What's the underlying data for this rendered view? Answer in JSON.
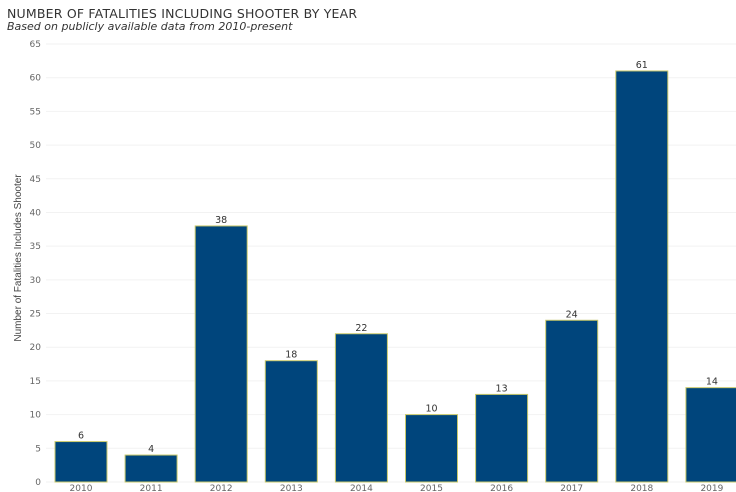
{
  "chart_data": {
    "type": "bar",
    "title": "NUMBER OF FATALITIES INCLUDING SHOOTER BY YEAR",
    "subtitle": "Based on publicly available data from 2010-present",
    "xlabel": "",
    "ylabel": "Number of Fatalities Includes Shooter",
    "categories": [
      "2010",
      "2011",
      "2012",
      "2013",
      "2014",
      "2015",
      "2016",
      "2017",
      "2018",
      "2019"
    ],
    "values": [
      6,
      4,
      38,
      18,
      22,
      10,
      13,
      24,
      61,
      14
    ],
    "ylim": [
      0,
      65
    ],
    "yticks": [
      0,
      5,
      10,
      15,
      20,
      25,
      30,
      35,
      40,
      45,
      50,
      55,
      60,
      65
    ],
    "grid": true,
    "legend": "none",
    "colors": {
      "bar_fill": "#00457c",
      "bar_outline": "#c8c86a"
    }
  }
}
